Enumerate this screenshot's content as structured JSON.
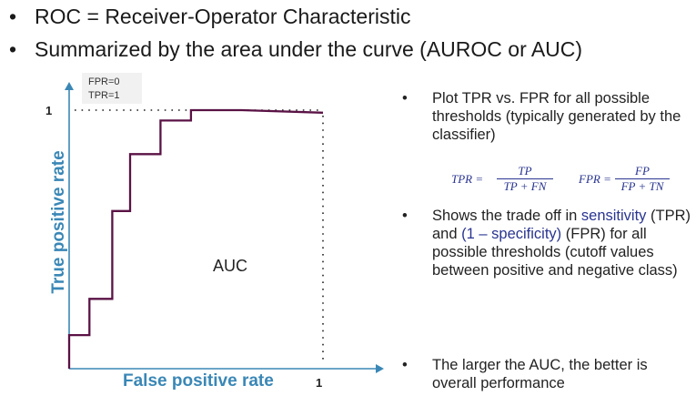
{
  "bullets": [
    "ROC = Receiver-Operator Characteristic",
    "Summarized by the area under the curve (AUROC or AUC)"
  ],
  "chart_data": {
    "type": "line",
    "xlabel": "False positive rate",
    "ylabel": "True positive rate",
    "xlim": [
      0,
      1
    ],
    "ylim": [
      0,
      1
    ],
    "x_tick_label": "1",
    "y_tick_label": "1",
    "corner_annotation": [
      "FPR=0",
      "TPR=1"
    ],
    "area_label": "AUC",
    "series": [
      {
        "x": [
          0,
          0,
          0.08,
          0.08,
          0.17,
          0.17,
          0.24,
          0.24,
          0.36,
          0.36,
          0.48,
          0.48,
          0.68,
          1.0
        ],
        "y": [
          0,
          0.13,
          0.13,
          0.27,
          0.27,
          0.61,
          0.61,
          0.83,
          0.83,
          0.96,
          0.96,
          1.0,
          1.0,
          0.99
        ]
      }
    ],
    "colors": {
      "axis": "#3a87b6",
      "curve": "#5a1245",
      "label": "#3a87b6"
    }
  },
  "right_panel": {
    "bullet1": "Plot TPR vs. FPR for all possible thresholds (typically generated by the classifier)",
    "formulas": {
      "tpr_lhs": "TPR =",
      "tpr_num": "TP",
      "tpr_den": "TP + FN",
      "fpr_lhs": "FPR =",
      "fpr_num": "FP",
      "fpr_den": "FP + TN"
    },
    "bullet2": {
      "pre": "Shows the trade off in ",
      "sens": "sensitivity",
      "mid": " (TPR) and ",
      "spec": "(1 – specificity)",
      "post": " (FPR) for all possible thresholds (cutoff values between positive and negative class)"
    },
    "bullet3": "The larger the AUC, the better is overall performance"
  }
}
